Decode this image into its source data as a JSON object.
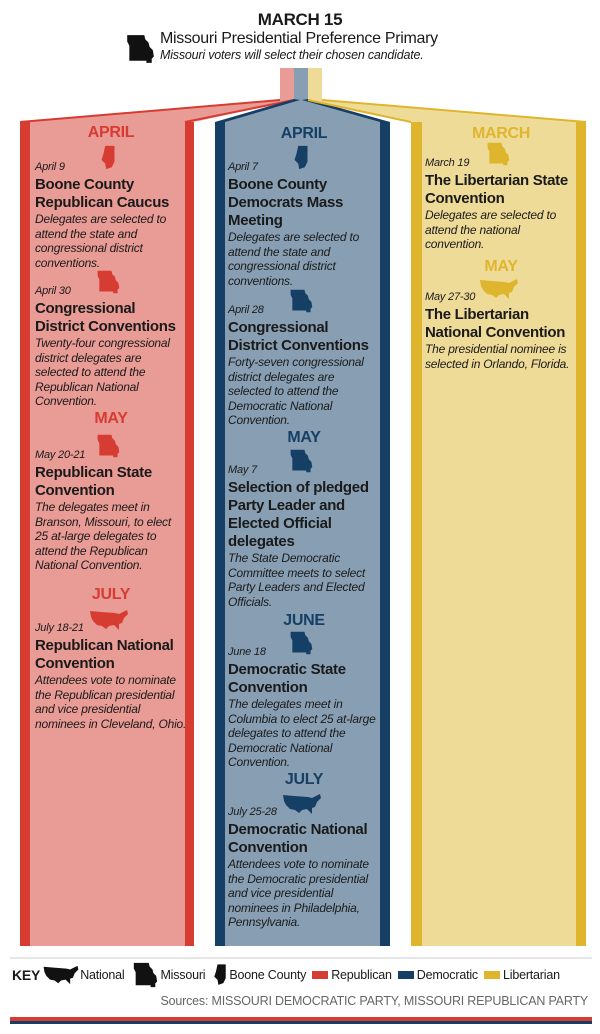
{
  "header": {
    "date": "MARCH 15",
    "title": "Missouri Presidential Preference Primary",
    "subtitle": "Missouri voters will select their chosen candidate.",
    "icon": "missouri-icon"
  },
  "colors": {
    "republican": "#d63c32",
    "republican_light": "#e99b95",
    "democratic": "#163f66",
    "democratic_light": "#889fb3",
    "libertarian": "#e0b52e",
    "libertarian_light": "#eedb98"
  },
  "columns": [
    {
      "party": "Republican",
      "sections": [
        {
          "month": "APRIL",
          "events": [
            {
              "date": "April 9",
              "icon": "boone-county-icon",
              "title": "Boone County Republican Caucus",
              "desc": "Delegates are selected to attend the state and congressional district conventions."
            },
            {
              "date": "April 30",
              "icon": "missouri-icon",
              "title": "Congressional District Conventions",
              "desc": "Twenty-four congressional district delegates are selected to attend the Republican National Convention."
            }
          ]
        },
        {
          "month": "MAY",
          "events": [
            {
              "date": "May 20-21",
              "icon": "missouri-icon",
              "title": "Republican State Convention",
              "desc": "The delegates meet in Branson, Missouri, to elect 25 at-large delegates to attend the Republican National Convention."
            }
          ]
        },
        {
          "month": "JULY",
          "events": [
            {
              "date": "July 18-21",
              "icon": "national-icon",
              "title": "Republican National Convention",
              "desc": "Attendees vote to nominate the Republican presidential and vice presidential nominees in Cleveland, Ohio."
            }
          ]
        }
      ]
    },
    {
      "party": "Democratic",
      "sections": [
        {
          "month": "APRIL",
          "events": [
            {
              "date": "April 7",
              "icon": "boone-county-icon",
              "title": "Boone County Democrats Mass Meeting",
              "desc": "Delegates are selected to attend the state and congressional district conventions."
            },
            {
              "date": "April 28",
              "icon": "missouri-icon",
              "title": "Congressional District Conventions",
              "desc": "Forty-seven congressional district delegates are selected to attend the Democratic National Convention."
            }
          ]
        },
        {
          "month": "MAY",
          "events": [
            {
              "date": "May 7",
              "icon": "missouri-icon",
              "title": "Selection of pledged Party Leader and Elected Official delegates",
              "desc": "The State Democratic Committee meets to select Party Leaders and Elected Officials."
            }
          ]
        },
        {
          "month": "JUNE",
          "events": [
            {
              "date": "June 18",
              "icon": "missouri-icon",
              "title": "Democratic State Convention",
              "desc": "The delegates meet in Columbia to elect 25 at-large delegates to attend the Democratic National Convention."
            }
          ]
        },
        {
          "month": "JULY",
          "events": [
            {
              "date": "July 25-28",
              "icon": "national-icon",
              "title": "Democratic National Convention",
              "desc": "Attendees vote to nominate the Democratic presidential and vice presidential nominees in Philadelphia, Pennsylvania."
            }
          ]
        }
      ]
    },
    {
      "party": "Libertarian",
      "sections": [
        {
          "month": "MARCH",
          "events": [
            {
              "date": "March 19",
              "icon": "missouri-icon",
              "title": "The Libertarian State Convention",
              "desc": "Delegates are selected to attend the national convention."
            }
          ]
        },
        {
          "month": "MAY",
          "events": [
            {
              "date": "May 27-30",
              "icon": "national-icon",
              "title": "The Libertarian National Convention",
              "desc": "The presidential nominee is selected in Orlando, Florida."
            }
          ]
        }
      ]
    }
  ],
  "key": {
    "label": "KEY",
    "national": "National",
    "missouri": "Missouri",
    "boone": "Boone County",
    "republican": "Republican",
    "democratic": "Democratic",
    "libertarian": "Libertarian"
  },
  "sources": "Sources: MISSOURI DEMOCRATIC PARTY, MISSOURI REPUBLICAN PARTY"
}
